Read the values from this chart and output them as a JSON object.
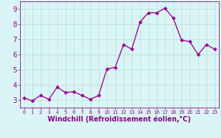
{
  "x": [
    0,
    1,
    2,
    3,
    4,
    5,
    6,
    7,
    8,
    9,
    10,
    11,
    12,
    13,
    14,
    15,
    16,
    17,
    18,
    19,
    20,
    21,
    22,
    23
  ],
  "y": [
    3.15,
    2.95,
    3.3,
    3.05,
    3.85,
    3.5,
    3.55,
    3.3,
    3.05,
    3.3,
    5.05,
    5.15,
    6.65,
    6.35,
    8.15,
    8.75,
    8.75,
    9.05,
    8.4,
    6.95,
    6.85,
    6.0,
    6.65,
    6.35
  ],
  "line_color": "#990099",
  "marker": "D",
  "marker_size": 2.5,
  "linewidth": 1.0,
  "background_color": "#d9f5f5",
  "grid_color": "#b8dada",
  "xlabel": "Windchill (Refroidissement éolien,°C)",
  "xlabel_fontsize": 7,
  "ylabel_ticks": [
    3,
    4,
    5,
    6,
    7,
    8,
    9
  ],
  "xtick_labels": [
    "0",
    "1",
    "2",
    "3",
    "4",
    "5",
    "6",
    "7",
    "8",
    "9",
    "10",
    "11",
    "12",
    "13",
    "14",
    "15",
    "16",
    "17",
    "18",
    "19",
    "20",
    "21",
    "22",
    "23"
  ],
  "ylim": [
    2.5,
    9.5
  ],
  "xlim": [
    -0.5,
    23.5
  ],
  "tick_color": "#880088",
  "label_color": "#880088",
  "ytick_fontsize": 7,
  "xtick_fontsize": 5
}
